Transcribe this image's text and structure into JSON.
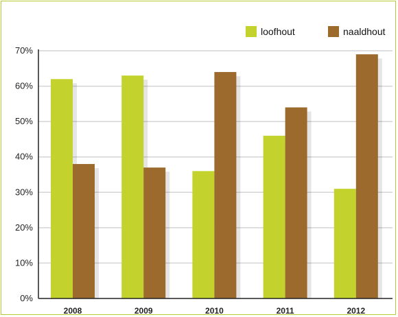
{
  "chart_data": {
    "type": "bar",
    "categories": [
      "2008",
      "2009",
      "2010",
      "2011",
      "2012"
    ],
    "series": [
      {
        "name": "loofhout",
        "values": [
          62,
          63,
          36,
          46,
          31
        ],
        "color": "#c4d22e"
      },
      {
        "name": "naaldhout",
        "values": [
          38,
          37,
          64,
          54,
          69
        ],
        "color": "#9b6a2c"
      }
    ],
    "ylim": [
      0,
      70
    ],
    "yticks": [
      0,
      10,
      20,
      30,
      40,
      50,
      60,
      70
    ],
    "ytick_labels": [
      "0%",
      "10%",
      "20%",
      "30%",
      "40%",
      "50%",
      "60%",
      "70%"
    ],
    "grid": true,
    "legend_position": "top-right",
    "title": "",
    "xlabel": "",
    "ylabel": ""
  }
}
